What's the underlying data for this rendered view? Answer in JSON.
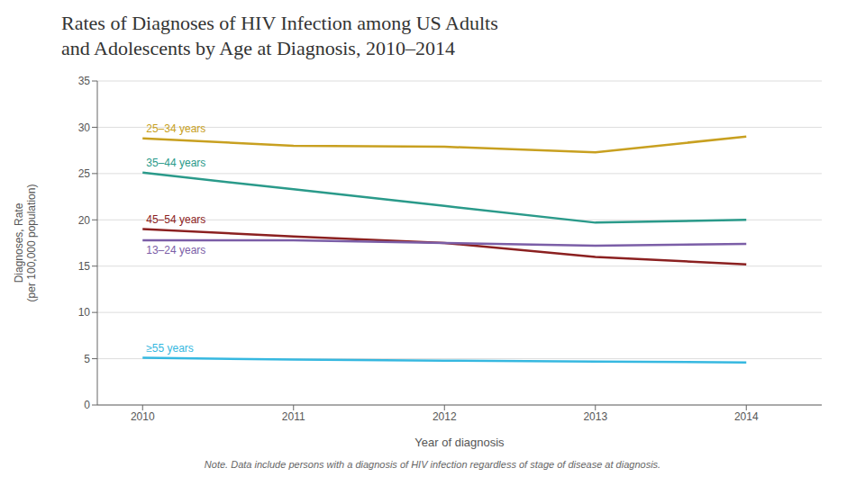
{
  "chart_data": {
    "type": "line",
    "title": "Rates of Diagnoses of HIV Infection among US Adults\nand Adolescents by Age at Diagnosis, 2010–2014",
    "x_label": "Year of diagnosis",
    "y_label": "Diagnoses, Rate\n(per 100,000 population)",
    "x": [
      2010,
      2011,
      2012,
      2013,
      2014
    ],
    "series": [
      {
        "name": "25–34 years",
        "color": "#c8a020",
        "values": [
          28.8,
          28.0,
          27.9,
          27.3,
          29.0
        ]
      },
      {
        "name": "35–44 years",
        "color": "#2a9a8a",
        "values": [
          25.1,
          23.3,
          21.5,
          19.7,
          20.0
        ]
      },
      {
        "name": "45–54 years",
        "color": "#8b2020",
        "values": [
          19.0,
          18.2,
          17.5,
          16.0,
          15.2
        ]
      },
      {
        "name": "13–24 years",
        "color": "#7b5ea7",
        "values": [
          17.8,
          17.8,
          17.5,
          17.2,
          17.4
        ]
      },
      {
        "name": "≥55 years",
        "color": "#36b8e0",
        "values": [
          5.1,
          4.9,
          4.8,
          4.7,
          4.6
        ]
      }
    ],
    "xlim": [
      2009.7,
      2014.5
    ],
    "xticks": [
      2010,
      2011,
      2012,
      2013,
      2014
    ],
    "ylim": [
      0,
      35
    ],
    "yticks": [
      0,
      5,
      10,
      15,
      20,
      25,
      30,
      35
    ],
    "grid": true,
    "annotations": [
      "Note. Data include persons with a diagnosis of HIV infection regardless of stage of disease at diagnosis."
    ]
  }
}
